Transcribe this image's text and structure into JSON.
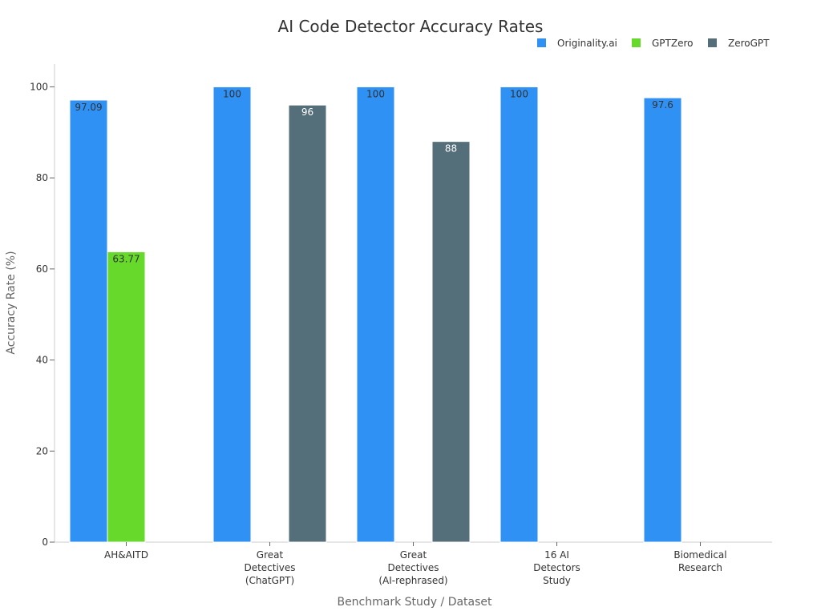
{
  "chart_data": {
    "type": "bar",
    "title": "AI Code Detector Accuracy Rates",
    "xlabel": "Benchmark Study / Dataset",
    "ylabel": "Accuracy Rate (%)",
    "ylim": [
      0,
      105
    ],
    "yticks": [
      0,
      20,
      40,
      60,
      80,
      100
    ],
    "legend_position": "top-right",
    "categories": [
      [
        "AH&AITD"
      ],
      [
        "Great",
        "Detectives",
        "(ChatGPT)"
      ],
      [
        "Great",
        "Detectives",
        "(AI-rephrased)"
      ],
      [
        "16 AI",
        "Detectors",
        "Study"
      ],
      [
        "Biomedical",
        "Research"
      ]
    ],
    "series": [
      {
        "name": "Originality.ai",
        "color": "#3091f5",
        "label_color": "#333333",
        "values": [
          97.09,
          100,
          100,
          100,
          97.6
        ]
      },
      {
        "name": "GPTZero",
        "color": "#66d92b",
        "label_color": "#333333",
        "values": [
          63.77,
          null,
          null,
          null,
          null
        ]
      },
      {
        "name": "ZeroGPT",
        "color": "#546e7a",
        "label_color": "#ffffff",
        "values": [
          null,
          96,
          88,
          null,
          null
        ]
      }
    ]
  }
}
